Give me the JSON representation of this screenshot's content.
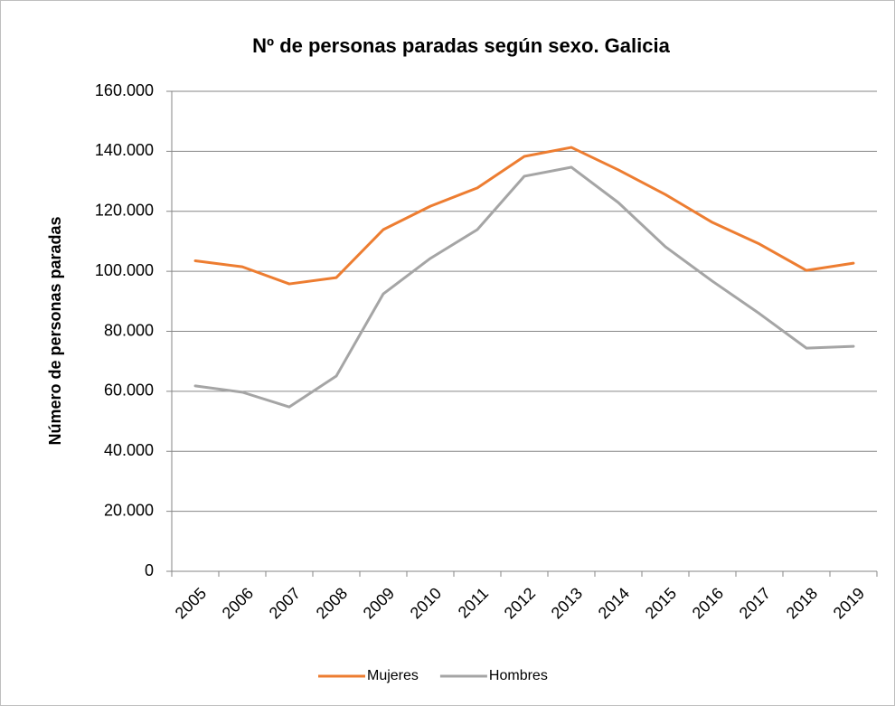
{
  "chart_data": {
    "type": "line",
    "title": "Nº de personas paradas según sexo. Galicia",
    "y_label": "Número de personas paradas",
    "categories": [
      "2005",
      "2006",
      "2007",
      "2008",
      "2009",
      "2010",
      "2011",
      "2012",
      "2013",
      "2014",
      "2015",
      "2016",
      "2017",
      "2018",
      "2019"
    ],
    "series": [
      {
        "name": "Mujeres",
        "color": "#ed7d31",
        "values": [
          103500,
          101500,
          95800,
          97900,
          113900,
          121700,
          127800,
          138300,
          141300,
          133800,
          125600,
          116300,
          109100,
          100300,
          102700
        ]
      },
      {
        "name": "Hombres",
        "color": "#a5a5a5",
        "values": [
          61800,
          59700,
          54800,
          65100,
          92500,
          104300,
          113900,
          131700,
          134700,
          122900,
          108200,
          96700,
          85900,
          74400,
          75000
        ]
      }
    ],
    "ylim": [
      0,
      160000
    ],
    "yticks": [
      0,
      {
        "value": 20000,
        "label": "20.000"
      },
      {
        "value": 40000,
        "label": "40.000"
      },
      {
        "value": 60000,
        "label": "60.000"
      },
      {
        "value": 80000,
        "label": "80.000"
      },
      {
        "value": 100000,
        "label": "100.000"
      },
      {
        "value": 120000,
        "label": "120.000"
      },
      {
        "value": 140000,
        "label": "140.000"
      },
      {
        "value": 160000,
        "label": "160.000"
      }
    ],
    "grid": true,
    "legend": "bottom"
  }
}
